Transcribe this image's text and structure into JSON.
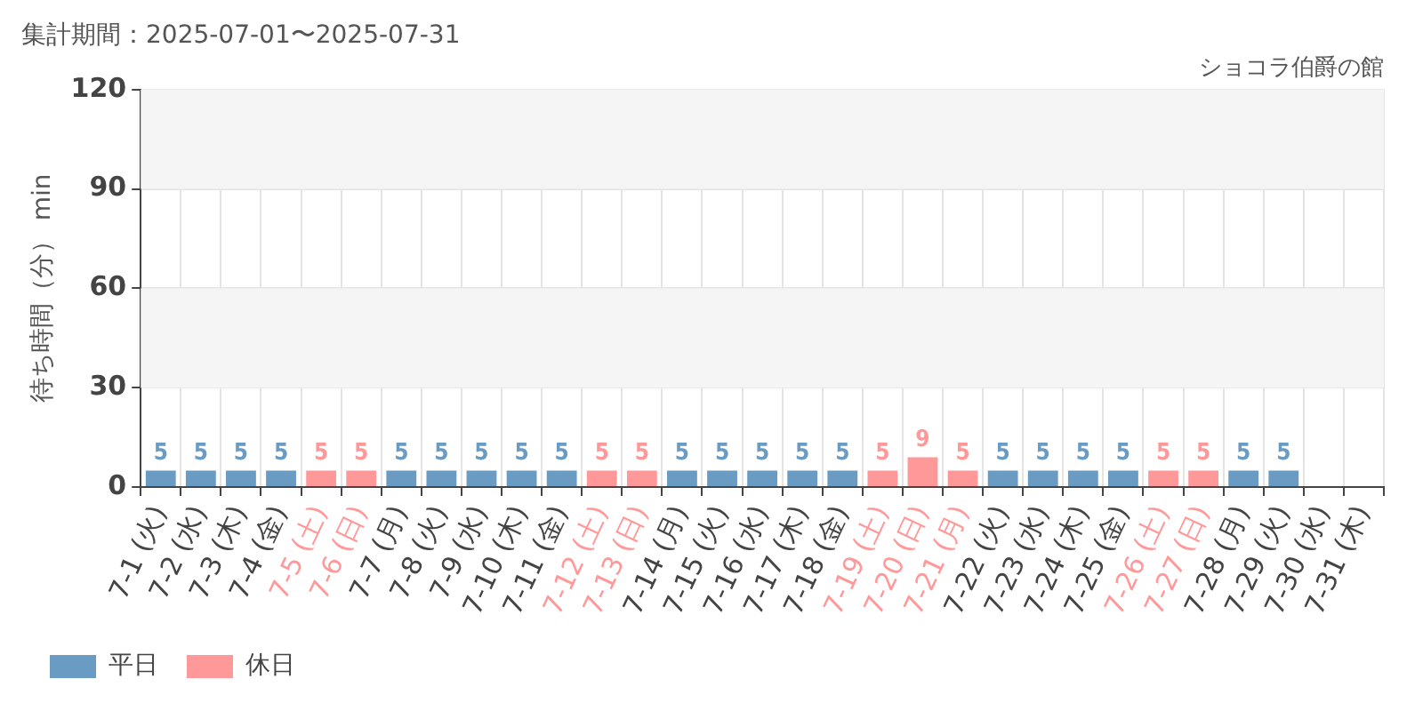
{
  "chart_data": {
    "type": "bar",
    "title": "集計期間：2025-07-01〜2025-07-31",
    "subtitle": "ショコラ伯爵の館",
    "ylabel": "待ち時間（分） min",
    "categories": [
      "7-1 (火)",
      "7-2 (水)",
      "7-3 (木)",
      "7-4 (金)",
      "7-5 (土)",
      "7-6 (日)",
      "7-7 (月)",
      "7-8 (火)",
      "7-9 (水)",
      "7-10 (木)",
      "7-11 (金)",
      "7-12 (土)",
      "7-13 (日)",
      "7-14 (月)",
      "7-15 (火)",
      "7-16 (水)",
      "7-17 (木)",
      "7-18 (金)",
      "7-19 (土)",
      "7-20 (日)",
      "7-21 (月)",
      "7-22 (火)",
      "7-23 (水)",
      "7-24 (木)",
      "7-25 (金)",
      "7-26 (土)",
      "7-27 (日)",
      "7-28 (月)",
      "7-29 (火)",
      "7-30 (水)",
      "7-31 (木)"
    ],
    "series": [
      {
        "name": "平日",
        "color": "#6a9bc3",
        "values": [
          5,
          5,
          5,
          5,
          null,
          null,
          5,
          5,
          5,
          5,
          5,
          null,
          null,
          5,
          5,
          5,
          5,
          5,
          null,
          null,
          null,
          5,
          5,
          5,
          5,
          null,
          null,
          5,
          5,
          null,
          null
        ]
      },
      {
        "name": "休日",
        "color": "#ff9999",
        "values": [
          null,
          null,
          null,
          null,
          5,
          5,
          null,
          null,
          null,
          null,
          null,
          5,
          5,
          null,
          null,
          null,
          null,
          null,
          5,
          9,
          5,
          null,
          null,
          null,
          null,
          5,
          5,
          null,
          null,
          null,
          null
        ]
      }
    ],
    "ylim": [
      0,
      120
    ],
    "yticks": [
      0,
      30,
      60,
      90,
      120
    ],
    "bands": [
      {
        "axis": "y",
        "from": 30,
        "to": 60,
        "color": "#f5f5f5"
      },
      {
        "axis": "y",
        "from": 90,
        "to": 120,
        "color": "#f5f5f5"
      }
    ],
    "grid": true,
    "legend": "bottom left",
    "data_labels": true
  }
}
